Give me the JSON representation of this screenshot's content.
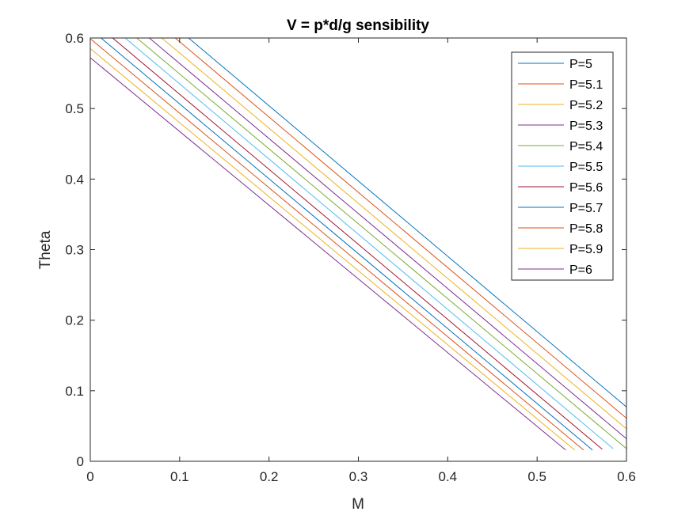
{
  "chart_data": {
    "type": "line",
    "title": "V = p*d/g sensibility",
    "xlabel": "M",
    "ylabel": "Theta",
    "xlim": [
      0,
      0.6
    ],
    "ylim": [
      0,
      0.6
    ],
    "xticks": [
      0,
      0.1,
      0.2,
      0.3,
      0.4,
      0.5,
      0.6
    ],
    "yticks": [
      0,
      0.1,
      0.2,
      0.3,
      0.4,
      0.5,
      0.6
    ],
    "xtick_labels": [
      "0",
      "0.1",
      "0.2",
      "0.3",
      "0.4",
      "0.5",
      "0.6"
    ],
    "ytick_labels": [
      "0",
      "0.1",
      "0.2",
      "0.3",
      "0.4",
      "0.5",
      "0.6"
    ],
    "grid": false,
    "legend_position": "top-right",
    "series": [
      {
        "name": "P=5",
        "color": "#0072BD",
        "x": [
          0.11,
          0.6
        ],
        "y": [
          0.6,
          0.077
        ]
      },
      {
        "name": "P=5.1",
        "color": "#D95319",
        "x": [
          0.095,
          0.6
        ],
        "y": [
          0.6,
          0.061
        ]
      },
      {
        "name": "P=5.2",
        "color": "#EDB120",
        "x": [
          0.08,
          0.6
        ],
        "y": [
          0.6,
          0.046
        ]
      },
      {
        "name": "P=5.3",
        "color": "#7E2F8E",
        "x": [
          0.066,
          0.6
        ],
        "y": [
          0.6,
          0.032
        ]
      },
      {
        "name": "P=5.4",
        "color": "#77AC30",
        "x": [
          0.052,
          0.6
        ],
        "y": [
          0.6,
          0.018
        ]
      },
      {
        "name": "P=5.5",
        "color": "#4DBEEE",
        "x": [
          0.039,
          0.585
        ],
        "y": [
          0.6,
          0.018
        ]
      },
      {
        "name": "P=5.6",
        "color": "#A2142F",
        "x": [
          0.025,
          0.573
        ],
        "y": [
          0.6,
          0.017
        ]
      },
      {
        "name": "P=5.7",
        "color": "#0072BD",
        "x": [
          0.012,
          0.562
        ],
        "y": [
          0.6,
          0.016
        ]
      },
      {
        "name": "P=5.8",
        "color": "#D95319",
        "x": [
          0.0,
          0.552
        ],
        "y": [
          0.599,
          0.016
        ]
      },
      {
        "name": "P=5.9",
        "color": "#EDB120",
        "x": [
          0.0,
          0.542
        ],
        "y": [
          0.585,
          0.016
        ]
      },
      {
        "name": "P=6",
        "color": "#7E2F8E",
        "x": [
          0.0,
          0.532
        ],
        "y": [
          0.572,
          0.016
        ]
      }
    ]
  }
}
